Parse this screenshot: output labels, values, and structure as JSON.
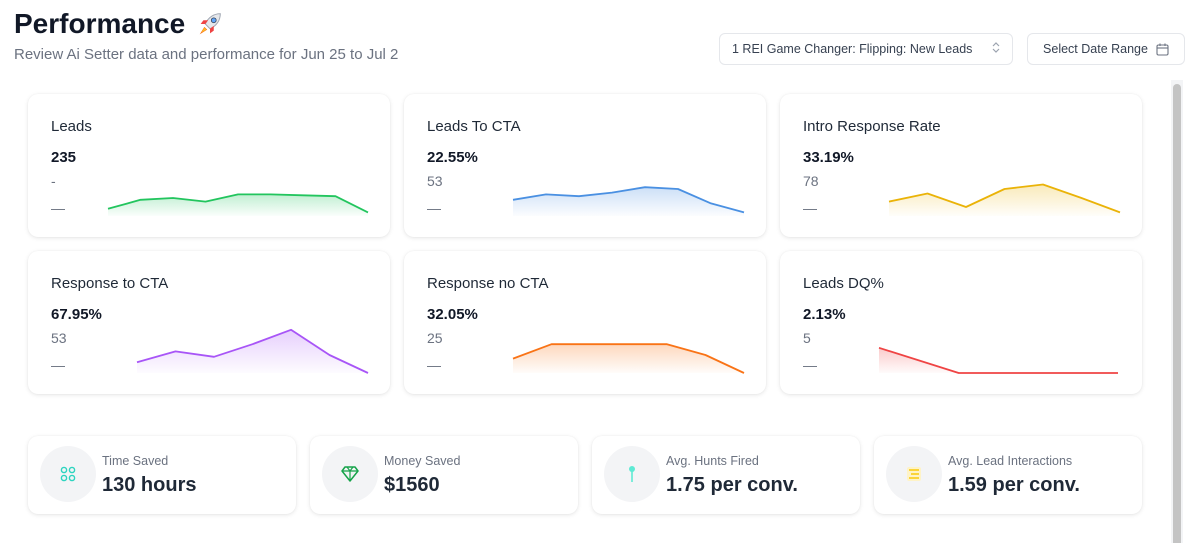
{
  "header": {
    "title": "Performance",
    "subtitle": "Review Ai Setter data and performance for Jun 25 to Jul 2",
    "campaign_select": "1 REI Game Changer: Flipping: New Leads",
    "date_button": "Select Date Range"
  },
  "cards": [
    {
      "title": "Leads",
      "value": "235",
      "sub": "-",
      "dash": "—",
      "color": "#22c55e",
      "spark": [
        26,
        21,
        20,
        22,
        18,
        18,
        18.5,
        19,
        28
      ]
    },
    {
      "title": "Leads To CTA",
      "value": "22.55%",
      "sub": "53",
      "dash": "—",
      "color": "#4a90e2",
      "spark": [
        21,
        18,
        19,
        17,
        14,
        15,
        23,
        28
      ]
    },
    {
      "title": "Intro Response Rate",
      "value": "33.19%",
      "sub": "78",
      "dash": "—",
      "color": "#eab308",
      "spark": [
        22,
        17.5,
        25,
        15,
        12.5,
        20,
        28
      ]
    },
    {
      "title": "Response to CTA",
      "value": "67.95%",
      "sub": "53",
      "dash": "—",
      "color": "#a855f7",
      "spark": [
        24,
        18,
        21,
        14,
        6,
        20,
        30
      ]
    },
    {
      "title": "Response no CTA",
      "value": "32.05%",
      "sub": "25",
      "dash": "—",
      "color": "#f97316",
      "spark": [
        22,
        14,
        14,
        14,
        14,
        20,
        30
      ]
    },
    {
      "title": "Leads DQ%",
      "value": "2.13%",
      "sub": "5",
      "dash": "—",
      "color": "#ef4444",
      "spark": [
        16,
        30,
        30,
        30
      ]
    }
  ],
  "stats": [
    {
      "label": "Time Saved",
      "value": "130 hours",
      "icon": "grid-icon",
      "color": "#2dd4bf"
    },
    {
      "label": "Money Saved",
      "value": "$1560",
      "icon": "diamond-icon",
      "color": "#16a34a"
    },
    {
      "label": "Avg. Hunts Fired",
      "value": "1.75 per conv.",
      "icon": "pin-icon",
      "color": "#5eead4"
    },
    {
      "label": "Avg. Lead Interactions",
      "value": "1.59 per conv.",
      "icon": "list-icon",
      "color": "#facc15"
    }
  ]
}
